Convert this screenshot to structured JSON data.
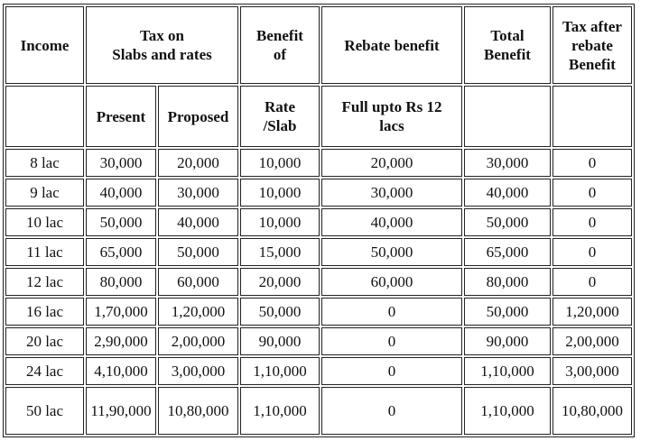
{
  "table": {
    "header": [
      "Income",
      "Tax on\nSlabs and rates",
      "Benefit\nof",
      "Rebate benefit",
      "Total\nBenefit",
      "Tax after\nrebate\nBenefit"
    ],
    "subheader": [
      "Present",
      "Proposed",
      "Rate\n/Slab",
      "Full upto Rs 12\nlacs"
    ],
    "rows": [
      [
        "8 lac",
        "30,000",
        "20,000",
        "10,000",
        "20,000",
        "30,000",
        "0"
      ],
      [
        "9 lac",
        "40,000",
        "30,000",
        "10,000",
        "30,000",
        "40,000",
        "0"
      ],
      [
        "10 lac",
        "50,000",
        "40,000",
        "10,000",
        "40,000",
        "50,000",
        "0"
      ],
      [
        "11 lac",
        "65,000",
        "50,000",
        "15,000",
        "50,000",
        "65,000",
        "0"
      ],
      [
        "12 lac",
        "80,000",
        "60,000",
        "20,000",
        "60,000",
        "80,000",
        "0"
      ],
      [
        "16 lac",
        "1,70,000",
        "1,20,000",
        "50,000",
        "0",
        "50,000",
        "1,20,000"
      ],
      [
        "20 lac",
        "2,90,000",
        "2,00,000",
        "90,000",
        "0",
        "90,000",
        "2,00,000"
      ],
      [
        "24 lac",
        "4,10,000",
        "3,00,000",
        "1,10,000",
        "0",
        "1,10,000",
        "3,00,000"
      ],
      [
        "50 lac",
        "11,90,000",
        "10,80,000",
        "1,10,000",
        "0",
        "1,10,000",
        "10,80,000"
      ]
    ]
  }
}
